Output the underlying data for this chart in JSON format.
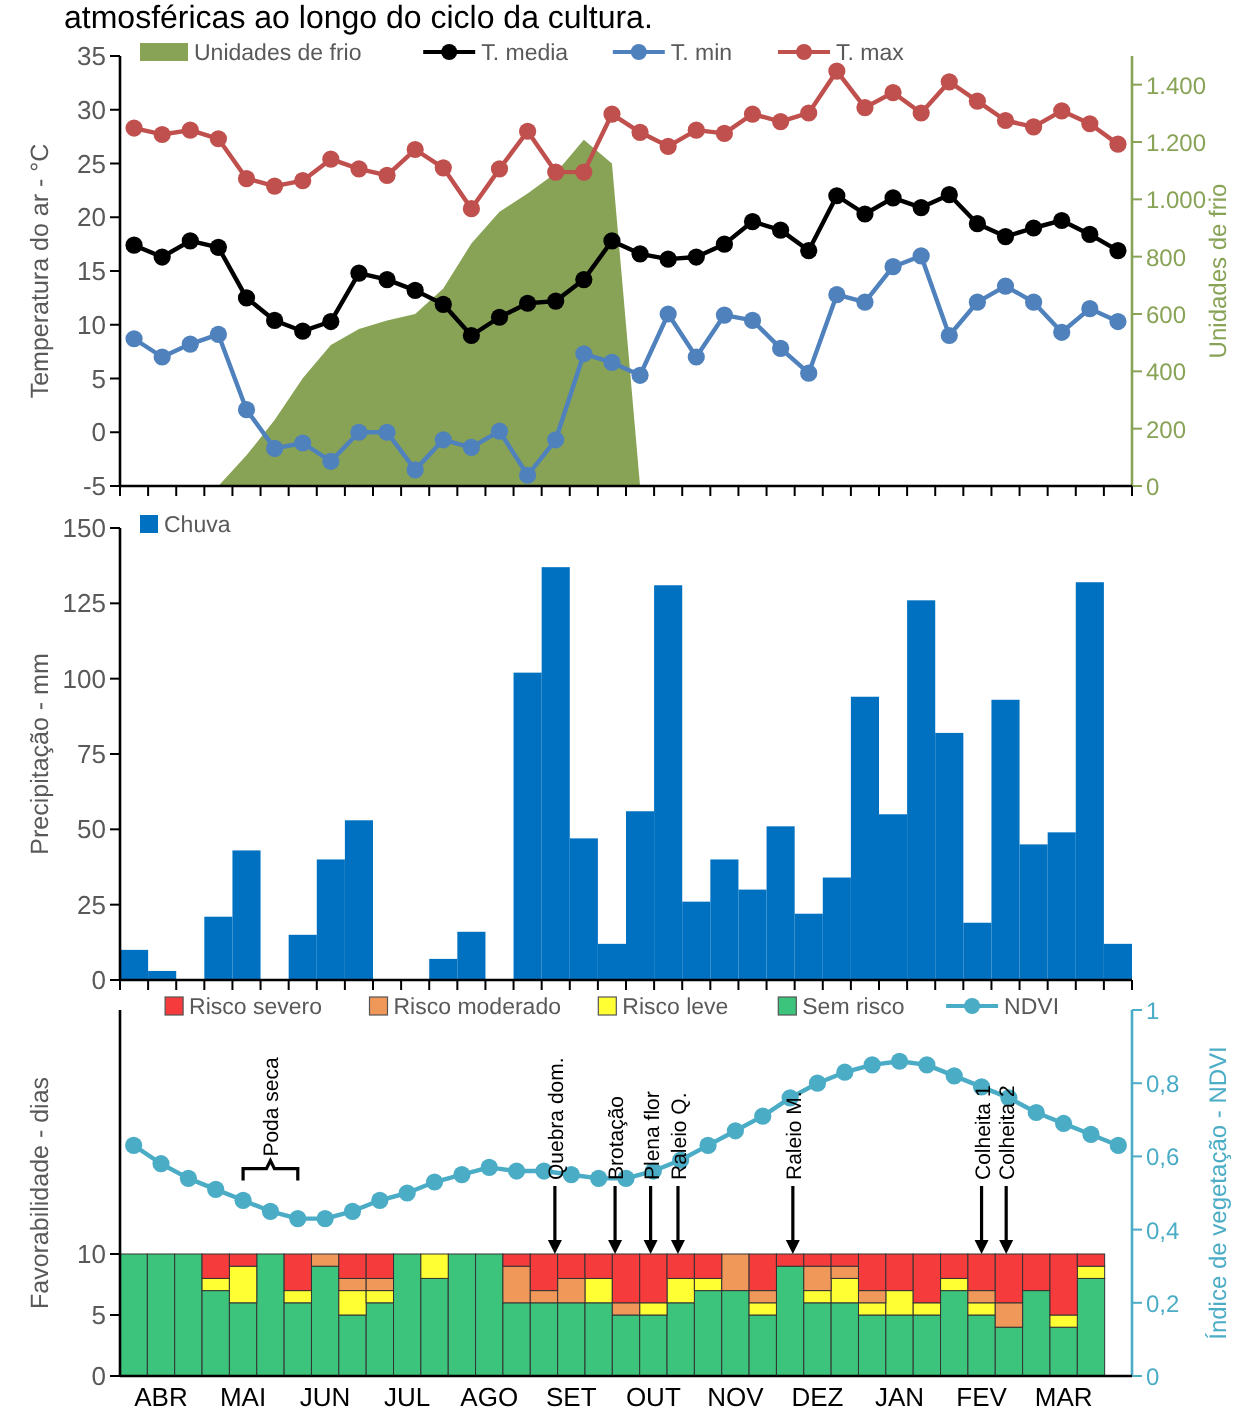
{
  "chart_data": [
    {
      "type": "line",
      "title": "atmosféricas ao longo do ciclo da cultura.",
      "ylabel": "Temperatura do ar - °C",
      "y2label": "Unidades de frio",
      "ylim": [
        -5,
        35
      ],
      "yticks": [
        -5,
        0,
        5,
        10,
        15,
        20,
        25,
        30,
        35
      ],
      "y2lim": [
        0,
        1500
      ],
      "y2ticks": [
        0,
        200,
        400,
        600,
        800,
        {
          "value": 1000,
          "label": "1.000"
        },
        {
          "value": 1200,
          "label": "1.200"
        },
        {
          "value": 1400,
          "label": "1.400"
        }
      ],
      "legend": "top left",
      "categories": [
        null,
        null,
        null,
        null,
        null,
        null,
        null,
        null,
        null,
        null,
        null,
        null,
        null,
        null,
        null,
        null,
        null,
        null,
        null,
        null,
        null,
        null,
        null,
        null,
        null,
        null,
        null,
        null,
        null,
        null,
        null,
        null,
        null,
        null,
        null,
        null
      ],
      "series": [
        {
          "name": "Unidades de frio",
          "type": "area",
          "axis": "y2",
          "color": "#88a356",
          "values": [
            null,
            null,
            null,
            0,
            107,
            230,
            376,
            492,
            548,
            577,
            600,
            689,
            846,
            957,
            1020,
            1092,
            1208,
            1125,
            0,
            null,
            null,
            null,
            null,
            null,
            null,
            null,
            null,
            null,
            null,
            null,
            null,
            null,
            null,
            null,
            null,
            null
          ]
        },
        {
          "name": "T. media",
          "color": "#000000",
          "marker": "circle",
          "values": [
            17.4,
            16.3,
            17.8,
            17.2,
            12.5,
            10.4,
            9.4,
            10.3,
            14.8,
            14.2,
            13.2,
            11.9,
            9.0,
            10.7,
            12.0,
            12.2,
            14.2,
            17.8,
            16.6,
            16.1,
            16.3,
            17.5,
            19.6,
            18.8,
            16.9,
            22.0,
            20.3,
            21.8,
            20.9,
            22.1,
            19.4,
            18.2,
            19.0,
            19.7,
            18.4,
            16.9
          ]
        },
        {
          "name": "T. min",
          "color": "#4f81bd",
          "marker": "circle",
          "values": [
            8.7,
            7.0,
            8.2,
            9.1,
            2.1,
            -1.5,
            -1.0,
            -2.7,
            0.0,
            0.0,
            -3.5,
            -0.7,
            -1.4,
            0.1,
            -4.0,
            -0.7,
            7.3,
            6.5,
            5.3,
            11.0,
            7.0,
            10.9,
            10.4,
            7.8,
            5.5,
            12.8,
            12.1,
            15.4,
            16.4,
            9.0,
            12.1,
            13.6,
            12.1,
            9.3,
            11.5,
            10.3
          ]
        },
        {
          "name": "T. max",
          "color": "#c0504d",
          "marker": "circle",
          "values": [
            28.3,
            27.7,
            28.1,
            27.3,
            23.6,
            22.9,
            23.4,
            25.4,
            24.5,
            23.9,
            26.3,
            24.6,
            20.8,
            24.5,
            28.0,
            24.2,
            24.2,
            29.6,
            27.9,
            26.6,
            28.1,
            27.8,
            29.6,
            28.9,
            29.7,
            33.6,
            30.2,
            31.6,
            29.7,
            32.6,
            30.8,
            29.0,
            28.4,
            29.9,
            28.7,
            26.8
          ]
        }
      ]
    },
    {
      "type": "bar",
      "ylabel": "Precipitação - mm",
      "ylim": [
        0,
        150
      ],
      "yticks": [
        0,
        25,
        50,
        75,
        100,
        125,
        150
      ],
      "legend": "top left",
      "categories": [
        null,
        null,
        null,
        null,
        null,
        null,
        null,
        null,
        null,
        null,
        null,
        null,
        null,
        null,
        null,
        null,
        null,
        null,
        null,
        null,
        null,
        null,
        null,
        null,
        null,
        null,
        null,
        null,
        null,
        null,
        null,
        null,
        null,
        null,
        null,
        null
      ],
      "series": [
        {
          "name": "Chuva",
          "color": "#0070c0",
          "values": [
            10,
            3,
            0,
            21,
            43,
            0,
            15,
            40,
            53,
            0,
            0,
            7,
            16,
            0,
            102,
            137,
            47,
            12,
            56,
            131,
            26,
            40,
            30,
            51,
            22,
            34,
            94,
            55,
            126,
            82,
            19,
            93,
            45,
            49,
            132,
            12
          ]
        }
      ]
    },
    {
      "type": "bar",
      "stacked": true,
      "ylabel": "Favorabilidade - dias",
      "y2label": "Índice de vegetação - NDVI",
      "ylim": [
        0,
        30
      ],
      "yticks": [
        0,
        5,
        10
      ],
      "y2lim": [
        0,
        1
      ],
      "y2ticks": [
        0,
        {
          "value": 0.2,
          "label": "0,2"
        },
        {
          "value": 0.4,
          "label": "0,4"
        },
        {
          "value": 0.6,
          "label": "0,6"
        },
        {
          "value": 0.8,
          "label": "0,8"
        },
        1
      ],
      "legend": "top",
      "categories": [
        null,
        "ABR",
        null,
        null,
        "MAI",
        null,
        null,
        "JUN",
        null,
        null,
        "JUL",
        null,
        null,
        "AGO",
        null,
        null,
        "SET",
        null,
        null,
        "OUT",
        null,
        null,
        "NOV",
        null,
        null,
        "DEZ",
        null,
        null,
        "JAN",
        null,
        null,
        "FEV",
        null,
        null,
        "MAR",
        null,
        null
      ],
      "annotations": [
        {
          "text": "Poda seca",
          "y": 17
        },
        {
          "text": "Quebra dom.",
          "y": 10
        },
        {
          "text": "Brotação",
          "y": 10
        },
        {
          "text": "Plena flor",
          "y": 10
        },
        {
          "text": "Raleio Q.",
          "y": 10
        },
        {
          "text": "Raleio M.",
          "y": 10
        },
        {
          "text": "Colheita 1",
          "y": 10
        },
        {
          "text": "Colheita 2",
          "y": 10
        }
      ],
      "series": [
        {
          "name": "Sem risco",
          "color": "#3cc47c",
          "values": [
            10,
            10,
            10,
            7,
            6,
            10,
            6,
            9,
            5,
            6,
            10,
            8,
            10,
            10,
            6,
            6,
            6,
            6,
            5,
            5,
            6,
            7,
            7,
            5,
            9,
            6,
            6,
            5,
            5,
            5,
            7,
            5,
            4,
            7,
            4,
            8,
            null
          ]
        },
        {
          "name": "Risco leve",
          "color": "#ffff33",
          "values": [
            0,
            0,
            0,
            1,
            3,
            0,
            1,
            0,
            2,
            1,
            0,
            2,
            0,
            0,
            0,
            0,
            0,
            2,
            0,
            1,
            2,
            1,
            0,
            1,
            0,
            1,
            2,
            1,
            2,
            1,
            1,
            1,
            0,
            0,
            1,
            1,
            null
          ]
        },
        {
          "name": "Risco moderado",
          "color": "#f0975a",
          "values": [
            0,
            0,
            0,
            0,
            0,
            0,
            0,
            1,
            1,
            1,
            0,
            0,
            0,
            0,
            3,
            1,
            2,
            0,
            1,
            0,
            0,
            0,
            3,
            1,
            0,
            2,
            1,
            1,
            0,
            0,
            0,
            1,
            2,
            0,
            0,
            0,
            null
          ]
        },
        {
          "name": "Risco severo",
          "color": "#f53b3b",
          "values": [
            0,
            0,
            0,
            2,
            1,
            0,
            3,
            0,
            2,
            2,
            0,
            0,
            0,
            0,
            1,
            3,
            2,
            2,
            4,
            4,
            2,
            2,
            0,
            3,
            1,
            1,
            1,
            3,
            3,
            4,
            2,
            3,
            4,
            3,
            5,
            1,
            null
          ]
        },
        {
          "name": "NDVI",
          "type": "line",
          "axis": "y2",
          "color": "#4bacc6",
          "marker": "circle",
          "values": [
            0.63,
            0.58,
            0.54,
            0.51,
            0.48,
            0.45,
            0.43,
            0.43,
            0.45,
            0.48,
            0.5,
            0.53,
            0.55,
            0.57,
            0.56,
            0.56,
            0.55,
            0.54,
            0.54,
            0.56,
            0.59,
            0.63,
            0.67,
            0.71,
            0.76,
            0.8,
            0.83,
            0.85,
            0.86,
            0.85,
            0.82,
            0.79,
            0.76,
            0.72,
            0.69,
            0.66,
            0.63
          ]
        }
      ]
    }
  ]
}
